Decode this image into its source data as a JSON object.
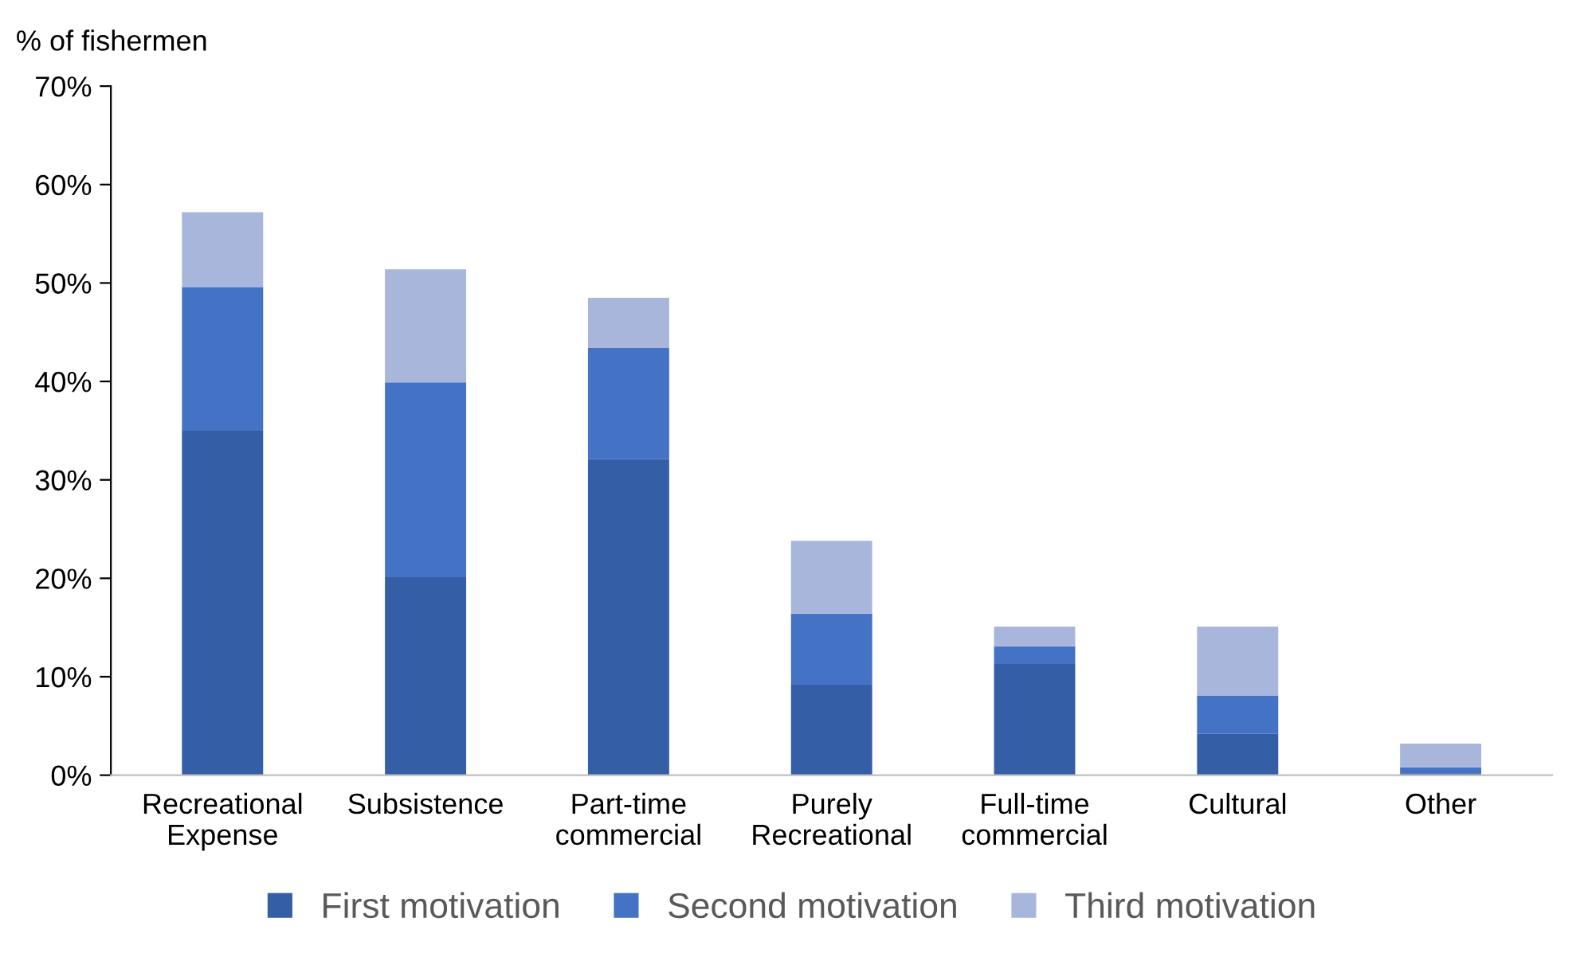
{
  "chart_data": {
    "type": "bar",
    "stacked": true,
    "ylabel": "% of fishermen",
    "categories": [
      "Recreational\nExpense",
      "Subsistence",
      "Part-time\ncommercial",
      "Purely\nRecreational",
      "Full-time\ncommercial",
      "Cultural",
      "Other"
    ],
    "series": [
      {
        "name": "First motivation",
        "color": "#345ea5",
        "values": [
          35.0,
          20.1,
          32.1,
          9.2,
          11.3,
          4.2,
          0.2
        ]
      },
      {
        "name": "Second motivation",
        "color": "#4472c4",
        "values": [
          14.6,
          19.8,
          11.3,
          7.2,
          1.8,
          3.9,
          0.6
        ]
      },
      {
        "name": "Third motivation",
        "color": "#a9b6dc",
        "values": [
          7.6,
          11.5,
          5.1,
          7.4,
          2.0,
          7.0,
          2.4
        ]
      }
    ],
    "ylim": [
      0,
      70
    ],
    "yticks": [
      {
        "value": 0,
        "label": "0%"
      },
      {
        "value": 10,
        "label": "10%"
      },
      {
        "value": 20,
        "label": "20%"
      },
      {
        "value": 30,
        "label": "30%"
      },
      {
        "value": 40,
        "label": "40%"
      },
      {
        "value": 50,
        "label": "50%"
      },
      {
        "value": 60,
        "label": "60%"
      },
      {
        "value": 70,
        "label": "70%"
      }
    ],
    "grid": false,
    "legend": "bottom"
  }
}
